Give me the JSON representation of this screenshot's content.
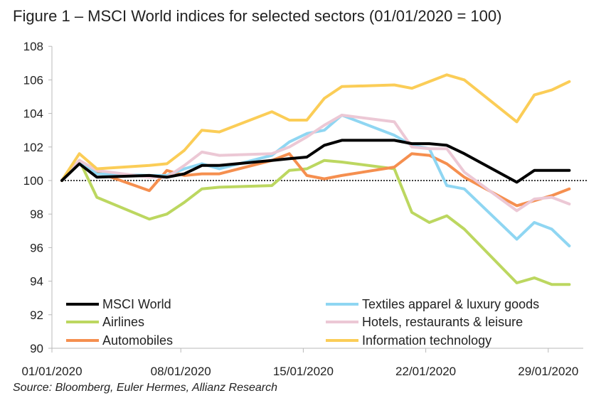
{
  "title": "Figure 1 – MSCI World indices for selected sectors (01/01/2020 = 100)",
  "source": "Source: Bloomberg, Euler Hermes, Allianz Research",
  "chart_data": {
    "type": "line",
    "title": "Figure 1 – MSCI World indices for selected sectors (01/01/2020 = 100)",
    "xlabel": "",
    "ylabel": "",
    "x_range": [
      "01/01/2020",
      "31/01/2020"
    ],
    "ylim": [
      90,
      108
    ],
    "y_ticks": [
      90,
      92,
      94,
      96,
      98,
      100,
      102,
      104,
      106,
      108
    ],
    "x_ticks": [
      "01/01/2020",
      "08/01/2020",
      "15/01/2020",
      "22/01/2020",
      "29/01/2020"
    ],
    "x_tick_days": [
      1,
      8,
      15,
      22,
      29
    ],
    "reference_line": {
      "y": 100,
      "style": "dotted"
    },
    "grid": false,
    "legend": "bottom, two columns",
    "series": [
      {
        "name": "MSCI World",
        "color": "#000000",
        "width": 4,
        "points": [
          [
            1,
            100
          ],
          [
            2,
            101.0
          ],
          [
            3,
            100.2
          ],
          [
            6,
            100.3
          ],
          [
            7,
            100.2
          ],
          [
            8,
            100.4
          ],
          [
            9,
            100.9
          ],
          [
            10,
            100.9
          ],
          [
            13,
            101.2
          ],
          [
            14,
            101.3
          ],
          [
            15,
            101.4
          ],
          [
            16,
            102.1
          ],
          [
            17,
            102.4
          ],
          [
            20,
            102.4
          ],
          [
            21,
            102.2
          ],
          [
            22,
            102.2
          ],
          [
            23,
            102.1
          ],
          [
            24,
            101.6
          ],
          [
            27,
            99.9
          ],
          [
            28,
            100.6
          ],
          [
            29,
            100.6
          ],
          [
            30,
            100.6
          ]
        ]
      },
      {
        "name": "Airlines",
        "color": "#bcd760",
        "width": 4,
        "points": [
          [
            1,
            100
          ],
          [
            2,
            101.2
          ],
          [
            3,
            99.0
          ],
          [
            6,
            97.7
          ],
          [
            7,
            98.0
          ],
          [
            8,
            98.7
          ],
          [
            9,
            99.5
          ],
          [
            10,
            99.6
          ],
          [
            13,
            99.7
          ],
          [
            14,
            100.6
          ],
          [
            15,
            100.7
          ],
          [
            16,
            101.2
          ],
          [
            17,
            101.1
          ],
          [
            20,
            100.7
          ],
          [
            21,
            98.1
          ],
          [
            22,
            97.5
          ],
          [
            23,
            97.9
          ],
          [
            24,
            97.1
          ],
          [
            27,
            93.9
          ],
          [
            28,
            94.2
          ],
          [
            29,
            93.8
          ],
          [
            30,
            93.8
          ]
        ]
      },
      {
        "name": "Automobiles",
        "color": "#f58f4f",
        "width": 4,
        "points": [
          [
            1,
            100
          ],
          [
            2,
            101.2
          ],
          [
            3,
            100.5
          ],
          [
            6,
            99.4
          ],
          [
            7,
            100.6
          ],
          [
            8,
            100.3
          ],
          [
            9,
            100.4
          ],
          [
            10,
            100.4
          ],
          [
            13,
            101.2
          ],
          [
            14,
            101.6
          ],
          [
            15,
            100.3
          ],
          [
            16,
            100.1
          ],
          [
            17,
            100.3
          ],
          [
            20,
            100.8
          ],
          [
            21,
            101.6
          ],
          [
            22,
            101.5
          ],
          [
            23,
            101.0
          ],
          [
            24,
            100.2
          ],
          [
            27,
            98.5
          ],
          [
            28,
            98.8
          ],
          [
            29,
            99.1
          ],
          [
            30,
            99.5
          ]
        ]
      },
      {
        "name": "Textiles apparel & luxury goods",
        "color": "#8fd6f2",
        "width": 4,
        "points": [
          [
            1,
            100
          ],
          [
            2,
            101.1
          ],
          [
            3,
            100.4
          ],
          [
            6,
            100.3
          ],
          [
            7,
            100.3
          ],
          [
            8,
            100.7
          ],
          [
            9,
            101.0
          ],
          [
            10,
            100.7
          ],
          [
            13,
            101.5
          ],
          [
            14,
            102.3
          ],
          [
            15,
            102.8
          ],
          [
            16,
            103.0
          ],
          [
            17,
            103.9
          ],
          [
            20,
            102.7
          ],
          [
            21,
            102.1
          ],
          [
            22,
            101.9
          ],
          [
            23,
            99.7
          ],
          [
            24,
            99.5
          ],
          [
            27,
            96.5
          ],
          [
            28,
            97.5
          ],
          [
            29,
            97.1
          ],
          [
            30,
            96.1
          ]
        ]
      },
      {
        "name": "Hotels, restaurants & leisure",
        "color": "#ecc8d5",
        "width": 4,
        "points": [
          [
            1,
            100
          ],
          [
            2,
            101.2
          ],
          [
            3,
            100.6
          ],
          [
            6,
            100.2
          ],
          [
            7,
            100.2
          ],
          [
            8,
            100.9
          ],
          [
            9,
            101.7
          ],
          [
            10,
            101.5
          ],
          [
            13,
            101.6
          ],
          [
            14,
            102.0
          ],
          [
            15,
            102.6
          ],
          [
            16,
            103.3
          ],
          [
            17,
            103.9
          ],
          [
            20,
            103.5
          ],
          [
            21,
            102.0
          ],
          [
            22,
            101.9
          ],
          [
            23,
            101.9
          ],
          [
            24,
            100.5
          ],
          [
            27,
            98.2
          ],
          [
            28,
            98.9
          ],
          [
            29,
            99.0
          ],
          [
            30,
            98.6
          ]
        ]
      },
      {
        "name": "Information technology",
        "color": "#fbcd57",
        "width": 4,
        "points": [
          [
            1,
            100
          ],
          [
            2,
            101.6
          ],
          [
            3,
            100.7
          ],
          [
            6,
            100.9
          ],
          [
            7,
            101.0
          ],
          [
            8,
            101.8
          ],
          [
            9,
            103.0
          ],
          [
            10,
            102.9
          ],
          [
            13,
            104.1
          ],
          [
            14,
            103.6
          ],
          [
            15,
            103.6
          ],
          [
            16,
            104.9
          ],
          [
            17,
            105.6
          ],
          [
            20,
            105.7
          ],
          [
            21,
            105.5
          ],
          [
            22,
            105.9
          ],
          [
            23,
            106.3
          ],
          [
            24,
            106.0
          ],
          [
            27,
            103.5
          ],
          [
            28,
            105.1
          ],
          [
            29,
            105.4
          ],
          [
            30,
            105.9
          ]
        ]
      }
    ]
  }
}
